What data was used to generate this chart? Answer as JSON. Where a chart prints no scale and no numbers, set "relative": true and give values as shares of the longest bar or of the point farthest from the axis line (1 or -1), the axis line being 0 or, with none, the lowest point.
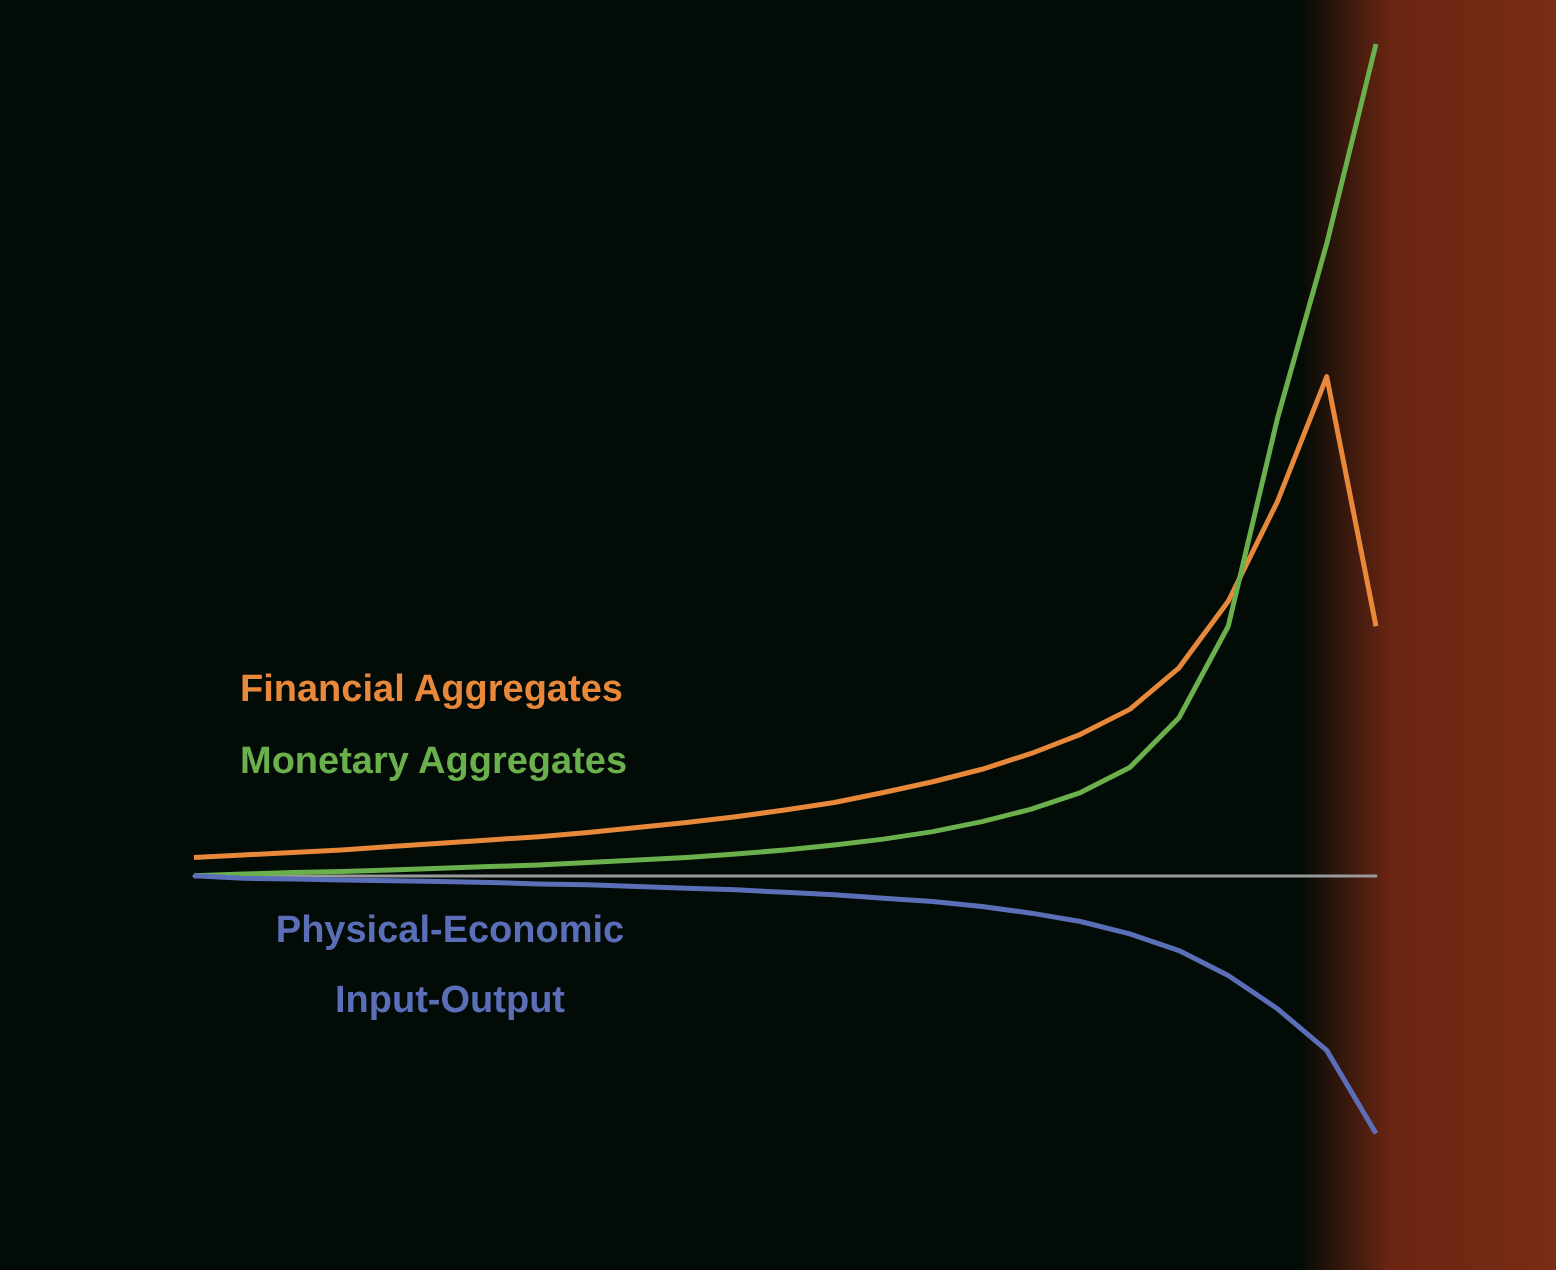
{
  "chart_data": {
    "type": "line",
    "relative": true,
    "marker": "none",
    "line_style": "solid",
    "grid": false,
    "legend": false,
    "categories": [
      null,
      null,
      null,
      null,
      null,
      null,
      null,
      null,
      null,
      null,
      null,
      null,
      null,
      null,
      null,
      null,
      null,
      null,
      null,
      null,
      null,
      null,
      null,
      null,
      null
    ],
    "series": [
      {
        "name": "Financial Aggregates",
        "color": "#e8883a",
        "values": [
          0.022,
          0.025,
          0.028,
          0.031,
          0.035,
          0.039,
          0.043,
          0.047,
          0.052,
          0.058,
          0.064,
          0.071,
          0.079,
          0.088,
          0.1,
          0.113,
          0.128,
          0.147,
          0.17,
          0.2,
          0.25,
          0.33,
          0.45,
          0.6,
          0.3
        ]
      },
      {
        "name": "Monetary Aggregates",
        "color": "#6ab04c",
        "values": [
          0,
          0.002,
          0.004,
          0.005,
          0.007,
          0.009,
          0.011,
          0.013,
          0.016,
          0.019,
          0.022,
          0.026,
          0.031,
          0.037,
          0.044,
          0.053,
          0.065,
          0.08,
          0.1,
          0.13,
          0.19,
          0.3,
          0.55,
          0.76,
          1
        ]
      },
      {
        "name": "Physical-Economic\nInput-Output",
        "color": "#5a6fb8",
        "values": [
          0,
          -0.003,
          -0.004,
          -0.005,
          -0.006,
          -0.007,
          -0.008,
          -0.01,
          -0.011,
          -0.013,
          -0.015,
          -0.017,
          -0.02,
          -0.023,
          -0.027,
          -0.031,
          -0.037,
          -0.045,
          -0.055,
          -0.07,
          -0.09,
          -0.12,
          -0.16,
          -0.21,
          -0.31
        ]
      }
    ]
  }
}
